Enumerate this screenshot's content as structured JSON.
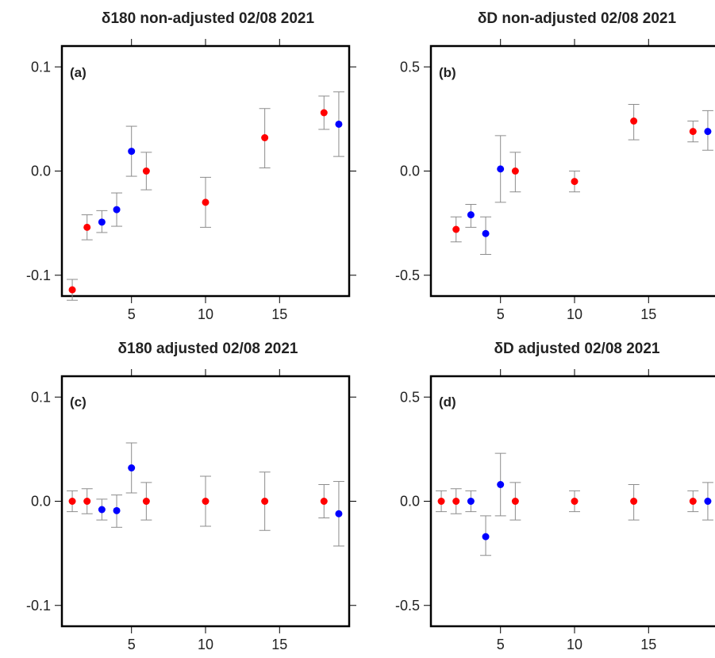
{
  "chart_data": [
    {
      "id": "a",
      "type": "scatter",
      "title": "δ180 non-adjusted 02/08 2021",
      "panel_label": "(a)",
      "xlim": [
        0.3,
        19.7
      ],
      "ylim": [
        -0.12,
        0.12
      ],
      "xticks": [
        5,
        10,
        15
      ],
      "yticks": [
        -0.1,
        0.0,
        0.1
      ],
      "ytick_labels": [
        "-0.1",
        "0.0",
        "0.1"
      ],
      "series": [
        {
          "color": "#ff0000",
          "points": [
            {
              "x": 1,
              "y": -0.114,
              "lo": -0.124,
              "hi": -0.104
            },
            {
              "x": 2,
              "y": -0.054,
              "lo": -0.066,
              "hi": -0.042
            },
            {
              "x": 6,
              "y": 0.0,
              "lo": -0.018,
              "hi": 0.018
            },
            {
              "x": 10,
              "y": -0.03,
              "lo": -0.054,
              "hi": -0.006
            },
            {
              "x": 14,
              "y": 0.032,
              "lo": 0.003,
              "hi": 0.06
            },
            {
              "x": 18,
              "y": 0.056,
              "lo": 0.04,
              "hi": 0.072
            }
          ]
        },
        {
          "color": "#0000ff",
          "points": [
            {
              "x": 3,
              "y": -0.049,
              "lo": -0.059,
              "hi": -0.038
            },
            {
              "x": 4,
              "y": -0.037,
              "lo": -0.053,
              "hi": -0.021
            },
            {
              "x": 5,
              "y": 0.019,
              "lo": -0.005,
              "hi": 0.043
            },
            {
              "x": 19,
              "y": 0.045,
              "lo": 0.014,
              "hi": 0.076
            }
          ]
        }
      ]
    },
    {
      "id": "b",
      "type": "scatter",
      "title": "δD non-adjusted 02/08 2021",
      "panel_label": "(b)",
      "xlim": [
        0.3,
        19.7
      ],
      "ylim": [
        -0.6,
        0.6
      ],
      "xticks": [
        5,
        10,
        15
      ],
      "yticks": [
        -0.5,
        0.0,
        0.5
      ],
      "ytick_labels": [
        "-0.5",
        "0.0",
        "0.5"
      ],
      "series": [
        {
          "color": "#ff0000",
          "points": [
            {
              "x": 2,
              "y": -0.28,
              "lo": -0.34,
              "hi": -0.22
            },
            {
              "x": 6,
              "y": 0.0,
              "lo": -0.1,
              "hi": 0.09
            },
            {
              "x": 10,
              "y": -0.05,
              "lo": -0.1,
              "hi": 0.0
            },
            {
              "x": 14,
              "y": 0.24,
              "lo": 0.15,
              "hi": 0.32
            },
            {
              "x": 18,
              "y": 0.19,
              "lo": 0.14,
              "hi": 0.24
            }
          ]
        },
        {
          "color": "#0000ff",
          "points": [
            {
              "x": 3,
              "y": -0.21,
              "lo": -0.27,
              "hi": -0.16
            },
            {
              "x": 4,
              "y": -0.3,
              "lo": -0.4,
              "hi": -0.22
            },
            {
              "x": 5,
              "y": 0.01,
              "lo": -0.15,
              "hi": 0.17
            },
            {
              "x": 19,
              "y": 0.19,
              "lo": 0.1,
              "hi": 0.29
            }
          ]
        }
      ]
    },
    {
      "id": "c",
      "type": "scatter",
      "title": "δ180 adjusted 02/08 2021",
      "panel_label": "(c)",
      "xlim": [
        0.3,
        19.7
      ],
      "ylim": [
        -0.12,
        0.12
      ],
      "xticks": [
        5,
        10,
        15
      ],
      "yticks": [
        -0.1,
        0.0,
        0.1
      ],
      "ytick_labels": [
        "-0.1",
        "0.0",
        "0.1"
      ],
      "series": [
        {
          "color": "#ff0000",
          "points": [
            {
              "x": 1,
              "y": 0.0,
              "lo": -0.01,
              "hi": 0.01
            },
            {
              "x": 2,
              "y": 0.0,
              "lo": -0.012,
              "hi": 0.012
            },
            {
              "x": 6,
              "y": 0.0,
              "lo": -0.018,
              "hi": 0.018
            },
            {
              "x": 10,
              "y": 0.0,
              "lo": -0.024,
              "hi": 0.024
            },
            {
              "x": 14,
              "y": 0.0,
              "lo": -0.028,
              "hi": 0.028
            },
            {
              "x": 18,
              "y": 0.0,
              "lo": -0.016,
              "hi": 0.016
            }
          ]
        },
        {
          "color": "#0000ff",
          "points": [
            {
              "x": 3,
              "y": -0.008,
              "lo": -0.018,
              "hi": 0.002
            },
            {
              "x": 4,
              "y": -0.009,
              "lo": -0.025,
              "hi": 0.006
            },
            {
              "x": 5,
              "y": 0.032,
              "lo": 0.008,
              "hi": 0.056
            },
            {
              "x": 19,
              "y": -0.012,
              "lo": -0.043,
              "hi": 0.019
            }
          ]
        }
      ]
    },
    {
      "id": "d",
      "type": "scatter",
      "title": "δD adjusted 02/08 2021",
      "panel_label": "(d)",
      "xlim": [
        0.3,
        19.7
      ],
      "ylim": [
        -0.6,
        0.6
      ],
      "xticks": [
        5,
        10,
        15
      ],
      "yticks": [
        -0.5,
        0.0,
        0.5
      ],
      "ytick_labels": [
        "-0.5",
        "0.0",
        "0.5"
      ],
      "series": [
        {
          "color": "#ff0000",
          "points": [
            {
              "x": 1,
              "y": 0.0,
              "lo": -0.05,
              "hi": 0.05
            },
            {
              "x": 2,
              "y": 0.0,
              "lo": -0.06,
              "hi": 0.06
            },
            {
              "x": 6,
              "y": 0.0,
              "lo": -0.09,
              "hi": 0.09
            },
            {
              "x": 10,
              "y": 0.0,
              "lo": -0.05,
              "hi": 0.05
            },
            {
              "x": 14,
              "y": 0.0,
              "lo": -0.09,
              "hi": 0.08
            },
            {
              "x": 18,
              "y": 0.0,
              "lo": -0.05,
              "hi": 0.05
            }
          ]
        },
        {
          "color": "#0000ff",
          "points": [
            {
              "x": 3,
              "y": 0.0,
              "lo": -0.05,
              "hi": 0.05
            },
            {
              "x": 4,
              "y": -0.17,
              "lo": -0.26,
              "hi": -0.07
            },
            {
              "x": 5,
              "y": 0.08,
              "lo": -0.07,
              "hi": 0.23
            },
            {
              "x": 19,
              "y": 0.0,
              "lo": -0.09,
              "hi": 0.09
            }
          ]
        }
      ]
    }
  ]
}
